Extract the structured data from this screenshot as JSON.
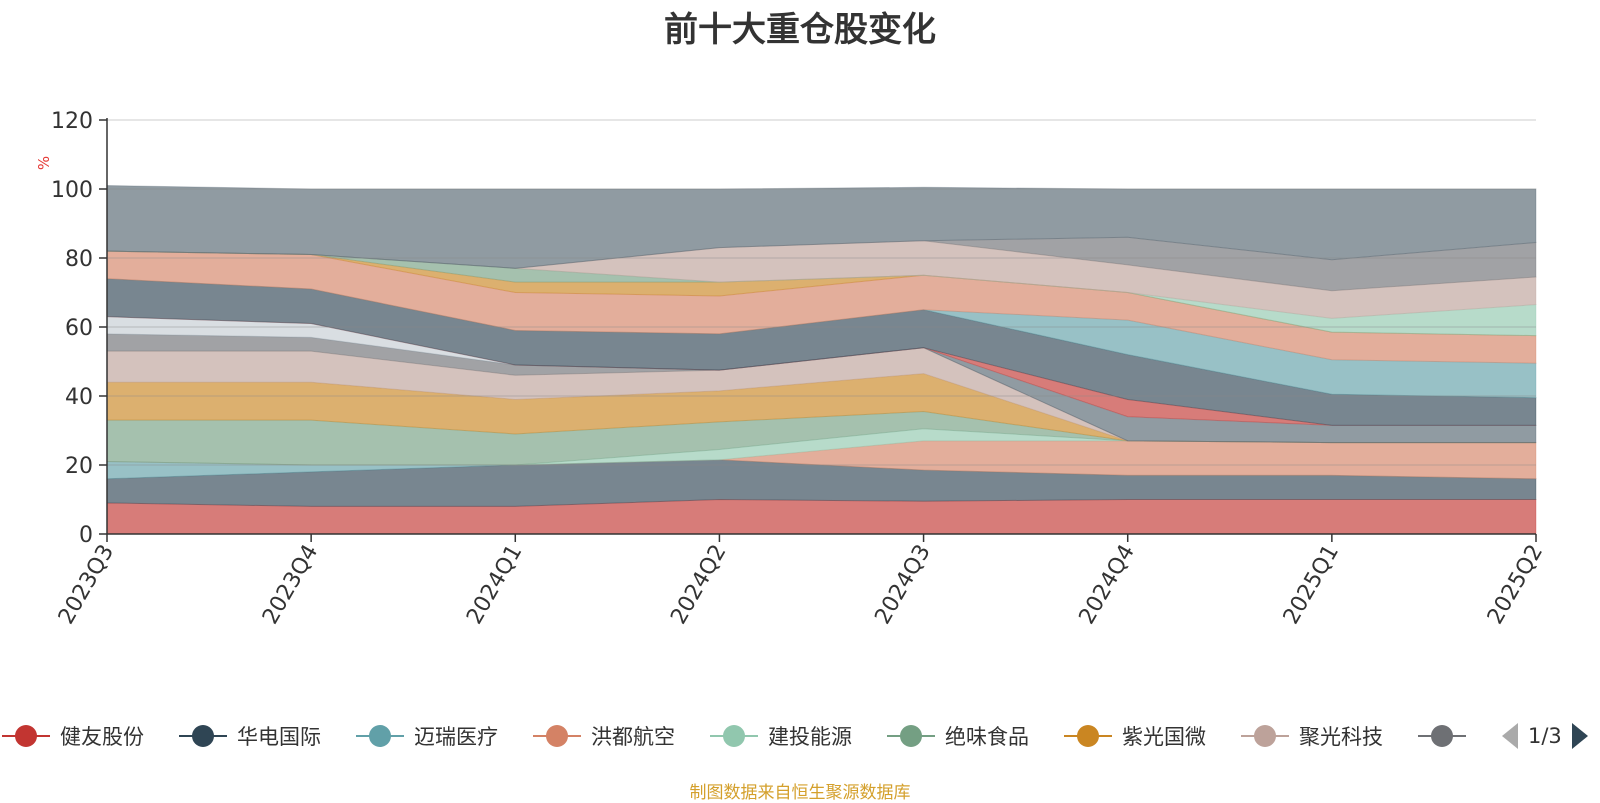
{
  "title": "前十大重仓股变化",
  "source_note": "制图数据来自恒生聚源数据库",
  "legend_page": "1/3",
  "chart_data": {
    "type": "area",
    "stacked": true,
    "ylabel": "%",
    "ylim": [
      0,
      120
    ],
    "yticks": [
      0,
      20,
      40,
      60,
      80,
      100,
      120
    ],
    "categories": [
      "2023Q3",
      "2023Q4",
      "2024Q1",
      "2024Q2",
      "2024Q3",
      "2024Q4",
      "2025Q1",
      "2025Q2"
    ],
    "series": [
      {
        "name": "健友股份",
        "color": "#c23531",
        "values": [
          9.0,
          8.0,
          8.0,
          10.0,
          9.5,
          10.0,
          10.0,
          10.0
        ]
      },
      {
        "name": "华电国际",
        "color": "#2f4554",
        "values": [
          7.0,
          10.0,
          12.0,
          11.5,
          9.0,
          7.0,
          7.0,
          6.0
        ]
      },
      {
        "name": "迈瑞医疗",
        "color": "#61a0a8",
        "values": [
          5.0,
          2.0,
          0,
          0,
          0,
          0,
          0,
          0
        ]
      },
      {
        "name": "洪都航空",
        "color": "#d48265",
        "values": [
          0,
          0,
          0,
          0,
          8.5,
          10.0,
          9.5,
          10.5
        ]
      },
      {
        "name": "建投能源",
        "color": "#91c7ae",
        "values": [
          0,
          0,
          0,
          3.0,
          3.5,
          0,
          0,
          0
        ]
      },
      {
        "name": "绝味食品",
        "color": "#749f83",
        "values": [
          12.0,
          13.0,
          9.0,
          8.0,
          5.0,
          0,
          0,
          0
        ]
      },
      {
        "name": "紫光国微",
        "color": "#ca8622",
        "values": [
          11.0,
          11.0,
          10.0,
          9.0,
          11.0,
          0,
          0,
          0
        ]
      },
      {
        "name": "聚光科技",
        "color": "#bda29a",
        "values": [
          9.0,
          9.0,
          7.0,
          6.0,
          7.5,
          0,
          0,
          0
        ]
      },
      {
        "name": "",
        "color": "#6e7074",
        "values": [
          5.0,
          4.0,
          3.0,
          0,
          0,
          0,
          0,
          0
        ]
      },
      {
        "name": "",
        "color": "#546570",
        "values": [
          0,
          0,
          0,
          0,
          0,
          7.0,
          5.0,
          5.0
        ]
      },
      {
        "name": "",
        "color": "#c4ccd3",
        "values": [
          5.0,
          4.0,
          0,
          0,
          0,
          0,
          0,
          0
        ]
      },
      {
        "name": "",
        "color": "#c23531",
        "values": [
          0,
          0,
          0,
          0,
          0,
          5.0,
          0,
          0
        ]
      },
      {
        "name": "",
        "color": "#2f4554",
        "values": [
          11.0,
          10.0,
          10.0,
          10.5,
          11.0,
          13.0,
          9.0,
          8.0
        ]
      },
      {
        "name": "",
        "color": "#61a0a8",
        "values": [
          0,
          0,
          0,
          0,
          0,
          10.0,
          10.0,
          10.0
        ]
      },
      {
        "name": "",
        "color": "#d48265",
        "values": [
          8.0,
          10.0,
          11.0,
          11.0,
          10.0,
          8.0,
          8.0,
          8.0
        ]
      },
      {
        "name": "",
        "color": "#ca8622",
        "values": [
          0,
          0,
          3.0,
          4.0,
          0,
          0,
          0,
          0
        ]
      },
      {
        "name": "",
        "color": "#749f83",
        "values": [
          0,
          0,
          4.0,
          0,
          0,
          0,
          0,
          0
        ]
      },
      {
        "name": "",
        "color": "#91c7ae",
        "values": [
          0,
          0,
          0,
          0,
          0,
          0,
          4.0,
          9.0
        ]
      },
      {
        "name": "",
        "color": "#bda29a",
        "values": [
          0,
          0,
          0,
          10.0,
          10.0,
          8.0,
          8.0,
          8.0
        ]
      },
      {
        "name": "",
        "color": "#6e7074",
        "values": [
          0,
          0,
          0,
          0,
          0,
          8.0,
          9.0,
          10.0
        ]
      },
      {
        "name": "",
        "color": "#546570",
        "values": [
          19.0,
          19.0,
          23.0,
          17.0,
          15.5,
          14.0,
          20.5,
          15.5
        ]
      }
    ],
    "legend": [
      {
        "name": "健友股份",
        "color": "#c23531"
      },
      {
        "name": "华电国际",
        "color": "#2f4554"
      },
      {
        "name": "迈瑞医疗",
        "color": "#61a0a8"
      },
      {
        "name": "洪都航空",
        "color": "#d48265"
      },
      {
        "name": "建投能源",
        "color": "#91c7ae"
      },
      {
        "name": "绝味食品",
        "color": "#749f83"
      },
      {
        "name": "紫光国微",
        "color": "#ca8622"
      },
      {
        "name": "聚光科技",
        "color": "#bda29a"
      },
      {
        "name": "",
        "color": "#6e7074"
      }
    ]
  }
}
